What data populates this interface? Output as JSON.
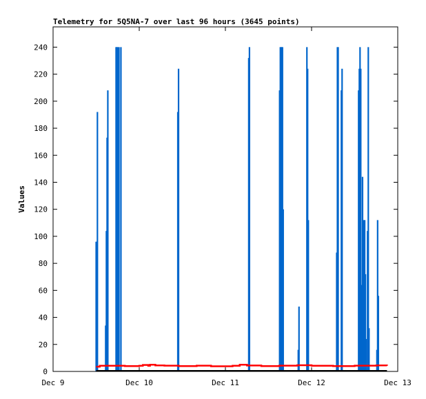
{
  "chart_data": {
    "type": "bar",
    "title": "Telemetry for 5Q5NA-7 over last 96 hours (3645 points)",
    "xlabel": "",
    "ylabel": "Values",
    "x_ticks": [
      "Dec 9",
      "Dec 10",
      "Dec 11",
      "Dec 12",
      "Dec 13"
    ],
    "x_range_hours": [
      0,
      96
    ],
    "y_ticks": [
      0,
      20,
      40,
      60,
      80,
      100,
      120,
      140,
      160,
      180,
      200,
      220,
      240
    ],
    "ylim": [
      0,
      255
    ],
    "grid": false,
    "legend": "none",
    "series": [
      {
        "color": "#0066cc",
        "style": "impulses",
        "points": [
          [
            12.0,
            96
          ],
          [
            12.15,
            96
          ],
          [
            12.35,
            192
          ],
          [
            14.65,
            34
          ],
          [
            14.85,
            104
          ],
          [
            15.05,
            173
          ],
          [
            15.25,
            208
          ],
          [
            17.55,
            240
          ],
          [
            17.75,
            240
          ],
          [
            17.95,
            240
          ],
          [
            18.15,
            120
          ],
          [
            18.35,
            240
          ],
          [
            18.9,
            240
          ],
          [
            34.75,
            192
          ],
          [
            34.95,
            224
          ],
          [
            54.5,
            232
          ],
          [
            54.7,
            240
          ],
          [
            63.1,
            208
          ],
          [
            63.3,
            240
          ],
          [
            63.5,
            240
          ],
          [
            63.7,
            240
          ],
          [
            63.9,
            240
          ],
          [
            64.1,
            120
          ],
          [
            68.3,
            16
          ],
          [
            68.5,
            48
          ],
          [
            70.7,
            240
          ],
          [
            70.9,
            224
          ],
          [
            71.1,
            112
          ],
          [
            79.0,
            88
          ],
          [
            79.2,
            240
          ],
          [
            79.4,
            240
          ],
          [
            80.3,
            208
          ],
          [
            80.5,
            224
          ],
          [
            85.1,
            208
          ],
          [
            85.3,
            224
          ],
          [
            85.5,
            240
          ],
          [
            85.7,
            224
          ],
          [
            85.9,
            64
          ],
          [
            86.2,
            144
          ],
          [
            86.6,
            112
          ],
          [
            86.8,
            112
          ],
          [
            87.0,
            72
          ],
          [
            87.2,
            24
          ],
          [
            87.6,
            104
          ],
          [
            87.8,
            240
          ],
          [
            88.0,
            32
          ],
          [
            90.2,
            16
          ],
          [
            90.4,
            112
          ],
          [
            90.6,
            56
          ]
        ]
      },
      {
        "color": "#ff0000",
        "style": "line",
        "points": [
          [
            12.0,
            3.5
          ],
          [
            13.0,
            4.2
          ],
          [
            20.0,
            4.0
          ],
          [
            24.0,
            4.2
          ],
          [
            25.0,
            4.8
          ],
          [
            26.5,
            4.2
          ],
          [
            27.0,
            5.0
          ],
          [
            28.5,
            4.5
          ],
          [
            31.0,
            4.3
          ],
          [
            35.0,
            4.0
          ],
          [
            40.0,
            4.3
          ],
          [
            44.0,
            3.8
          ],
          [
            50.0,
            4.2
          ],
          [
            52.0,
            5.0
          ],
          [
            54.0,
            4.4
          ],
          [
            58.0,
            4.0
          ],
          [
            63.0,
            4.3
          ],
          [
            68.0,
            4.6
          ],
          [
            72.0,
            4.2
          ],
          [
            78.0,
            4.0
          ],
          [
            84.0,
            4.3
          ],
          [
            90.0,
            4.5
          ],
          [
            93.0,
            4.2
          ]
        ]
      },
      {
        "color": "#000000",
        "style": "line",
        "points": [
          [
            12.0,
            0.5
          ],
          [
            93.0,
            0.5
          ]
        ]
      }
    ]
  }
}
